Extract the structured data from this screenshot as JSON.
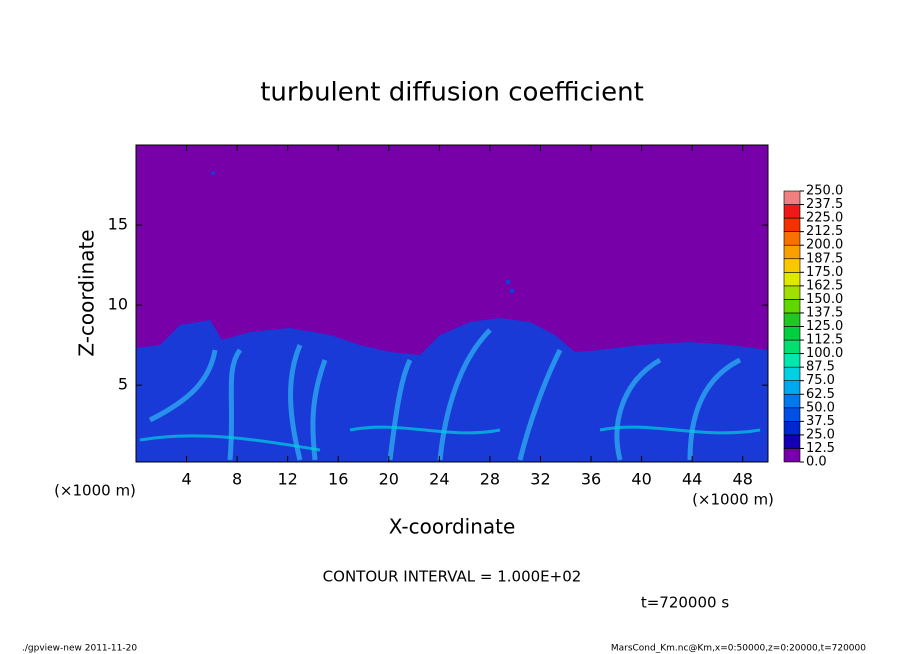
{
  "chart_data": {
    "type": "heatmap",
    "title": "turbulent diffusion coefficient",
    "xlabel": "X-coordinate",
    "ylabel": "Z-coordinate",
    "x_unit": "(×1000 m)",
    "y_unit": "(×1000 m)",
    "xlim": [
      0,
      50
    ],
    "ylim": [
      0.2,
      20
    ],
    "xticks": [
      4,
      8,
      12,
      16,
      20,
      24,
      28,
      32,
      36,
      40,
      44,
      48
    ],
    "yticks": [
      5,
      10,
      15
    ],
    "levels": [
      {
        "value": 0,
        "label": "0.0"
      },
      {
        "value": 12.5,
        "label": "12.5"
      },
      {
        "value": 25,
        "label": "25.0"
      },
      {
        "value": 37.5,
        "label": "37.5"
      },
      {
        "value": 50,
        "label": "50.0"
      },
      {
        "value": 62.5,
        "label": "62.5"
      },
      {
        "value": 75,
        "label": "75.0"
      },
      {
        "value": 87.5,
        "label": "87.5"
      },
      {
        "value": 100,
        "label": "100.0"
      },
      {
        "value": 112.5,
        "label": "112.5"
      },
      {
        "value": 125,
        "label": "125.0"
      },
      {
        "value": 137.5,
        "label": "137.5"
      },
      {
        "value": 150,
        "label": "150.0"
      },
      {
        "value": 162.5,
        "label": "162.5"
      },
      {
        "value": 175,
        "label": "175.0"
      },
      {
        "value": 187.5,
        "label": "187.5"
      },
      {
        "value": 200,
        "label": "200.0"
      },
      {
        "value": 212.5,
        "label": "212.5"
      },
      {
        "value": 225,
        "label": "225.0"
      },
      {
        "value": 237.5,
        "label": "237.5"
      },
      {
        "value": 250,
        "label": "250.0"
      }
    ],
    "colors": [
      "#7800a8",
      "#1400b4",
      "#0028d0",
      "#0050e8",
      "#0078f0",
      "#00a8f0",
      "#00d0e0",
      "#00e8b0",
      "#00e070",
      "#00d040",
      "#20c820",
      "#60d800",
      "#a0e000",
      "#e0e800",
      "#f8c800",
      "#f8a000",
      "#f87000",
      "#f83000",
      "#f01818",
      "#f08080"
    ],
    "annotations": {
      "contour_interval": "CONTOUR INTERVAL = 1.000E+02",
      "time": "t=720000 s",
      "footer_left": "./gpview-new  2011-11-20",
      "footer_right": "MarsCond_Km.nc@Km,x=0:50000,z=0:20000,t=720000"
    }
  }
}
